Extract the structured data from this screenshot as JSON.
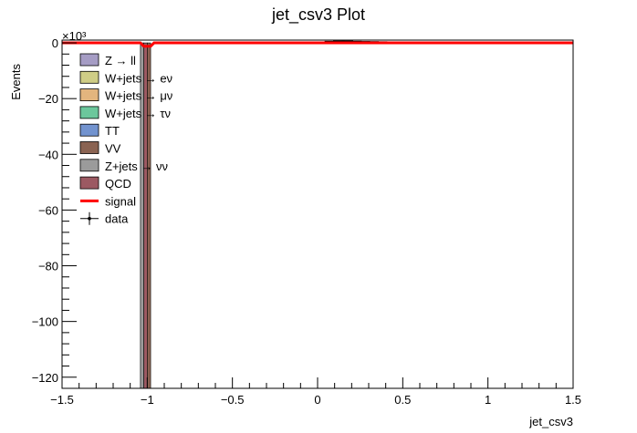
{
  "chart_data": {
    "type": "bar",
    "title": "jet_csv3 Plot",
    "xlabel": "jet_csv3",
    "ylabel": "Events",
    "y_exponent_label": "×10³",
    "y_scale": 1000,
    "xlim": [
      -1.5,
      1.5
    ],
    "ylim": [
      -124000,
      1000
    ],
    "x_ticks": [
      -1.5,
      -1,
      -0.5,
      0,
      0.5,
      1,
      1.5
    ],
    "x_tick_labels": [
      "−1.5",
      "−1",
      "−0.5",
      "0",
      "0.5",
      "1",
      "1.5"
    ],
    "y_ticks": [
      0,
      -20000,
      -40000,
      -60000,
      -80000,
      -100000,
      -120000
    ],
    "y_tick_labels": [
      "0",
      "−20",
      "−40",
      "−60",
      "−80",
      "−100",
      "−120"
    ],
    "legend": {
      "position": "top-left",
      "entries": [
        {
          "label": "Z → ll",
          "color": "#a59cc4",
          "style": "box"
        },
        {
          "label": "W+jets → eν",
          "color": "#cfcd86",
          "style": "box"
        },
        {
          "label": "W+jets → μν",
          "color": "#e3b57e",
          "style": "box"
        },
        {
          "label": "W+jets → τν",
          "color": "#6cc79c",
          "style": "box"
        },
        {
          "label": "TT",
          "color": "#7293cf",
          "style": "box"
        },
        {
          "label": "VV",
          "color": "#8a6352",
          "style": "box"
        },
        {
          "label": "Z+jets → νν",
          "color": "#9b9b9b",
          "style": "box"
        },
        {
          "label": "QCD",
          "color": "#9c5962",
          "style": "box"
        },
        {
          "label": "signal",
          "color": "#ff0000",
          "style": "line"
        },
        {
          "label": "data",
          "color": "#000000",
          "style": "marker"
        }
      ]
    },
    "bars": [
      {
        "x0": -1.04,
        "x1": -1.02,
        "value": -124000,
        "color": "#9b9b9b"
      },
      {
        "x0": -1.02,
        "x1": -1.0,
        "value": -124000,
        "color": "#9c5962"
      },
      {
        "x0": -1.0,
        "x1": -0.98,
        "value": -124000,
        "color": "#8a6352"
      }
    ],
    "signal": {
      "x": [
        -1.5,
        -1.04,
        -1.02,
        -0.98,
        -0.96,
        1.5
      ],
      "y": [
        0,
        0,
        -1200,
        -1200,
        0,
        0
      ]
    },
    "data_points": {
      "x": [
        0.0,
        0.05,
        0.1,
        0.15,
        0.2,
        0.25,
        0.3,
        0.35,
        0.4,
        0.45,
        0.5
      ],
      "y": [
        0,
        300,
        500,
        600,
        500,
        450,
        400,
        350,
        300,
        200,
        100
      ]
    }
  }
}
